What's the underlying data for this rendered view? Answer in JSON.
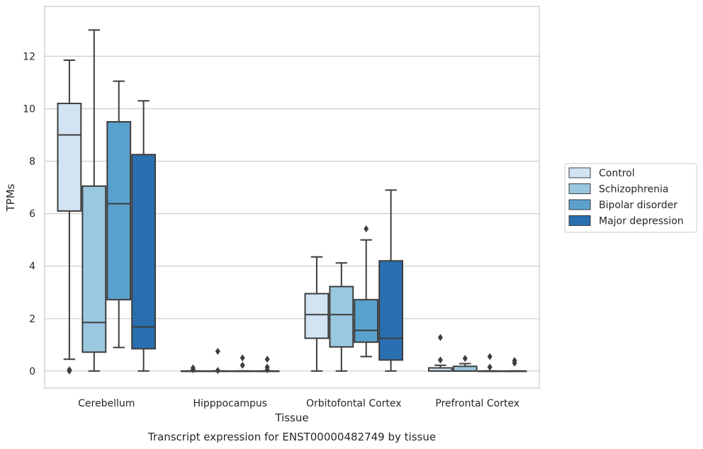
{
  "chart_data": {
    "type": "boxplot",
    "caption": "Transcript expression for ENST00000482749 by tissue",
    "xlabel": "Tissue",
    "ylabel": "TPMs",
    "ylim": [
      -0.65,
      13.9
    ],
    "yticks": [
      0,
      2,
      4,
      6,
      8,
      10,
      12
    ],
    "grid": "horizontal",
    "legend_position": "right",
    "categories": [
      "Cerebellum",
      "Hipppocampus",
      "Orbitofontal Cortex",
      "Prefrontal Cortex"
    ],
    "series": [
      {
        "name": "Control",
        "color": "#d2e3f3",
        "boxes": [
          {
            "whislo": 0.45,
            "q1": 6.1,
            "med": 9.0,
            "q3": 10.2,
            "whishi": 11.85,
            "fliers": [
              0.0,
              0.05
            ]
          },
          {
            "whislo": 0.0,
            "q1": 0.0,
            "med": 0.0,
            "q3": 0.0,
            "whishi": 0.0,
            "fliers": [
              0.05,
              0.12
            ]
          },
          {
            "whislo": 0.0,
            "q1": 1.25,
            "med": 2.15,
            "q3": 2.95,
            "whishi": 4.35,
            "fliers": []
          },
          {
            "whislo": 0.0,
            "q1": 0.0,
            "med": 0.0,
            "q3": 0.12,
            "whishi": 0.22,
            "fliers": [
              0.42,
              1.28
            ]
          }
        ]
      },
      {
        "name": "Schizophrenia",
        "color": "#9ac8e0",
        "boxes": [
          {
            "whislo": 0.0,
            "q1": 0.72,
            "med": 1.85,
            "q3": 7.05,
            "whishi": 13.0,
            "fliers": []
          },
          {
            "whislo": 0.0,
            "q1": 0.0,
            "med": 0.0,
            "q3": 0.0,
            "whishi": 0.0,
            "fliers": [
              0.02,
              0.75
            ]
          },
          {
            "whislo": 0.0,
            "q1": 0.92,
            "med": 2.15,
            "q3": 3.22,
            "whishi": 4.12,
            "fliers": []
          },
          {
            "whislo": 0.0,
            "q1": 0.0,
            "med": 0.0,
            "q3": 0.18,
            "whishi": 0.28,
            "fliers": [
              0.48
            ]
          }
        ]
      },
      {
        "name": "Bipolar disorder",
        "color": "#5aa0cd",
        "boxes": [
          {
            "whislo": 0.9,
            "q1": 2.72,
            "med": 6.38,
            "q3": 9.5,
            "whishi": 11.05,
            "fliers": []
          },
          {
            "whislo": 0.0,
            "q1": 0.0,
            "med": 0.0,
            "q3": 0.0,
            "whishi": 0.0,
            "fliers": [
              0.22,
              0.5
            ]
          },
          {
            "whislo": 0.55,
            "q1": 1.1,
            "med": 1.55,
            "q3": 2.72,
            "whishi": 5.0,
            "fliers": [
              5.42
            ]
          },
          {
            "whislo": 0.0,
            "q1": 0.0,
            "med": 0.0,
            "q3": 0.0,
            "whishi": 0.0,
            "fliers": [
              0.15,
              0.55
            ]
          }
        ]
      },
      {
        "name": "Major depression",
        "color": "#2a6fb0",
        "boxes": [
          {
            "whislo": 0.0,
            "q1": 0.85,
            "med": 1.68,
            "q3": 8.25,
            "whishi": 10.3,
            "fliers": []
          },
          {
            "whislo": 0.0,
            "q1": 0.0,
            "med": 0.0,
            "q3": 0.0,
            "whishi": 0.0,
            "fliers": [
              0.05,
              0.15,
              0.45
            ]
          },
          {
            "whislo": 0.0,
            "q1": 0.42,
            "med": 1.25,
            "q3": 4.2,
            "whishi": 6.9,
            "fliers": []
          },
          {
            "whislo": 0.0,
            "q1": 0.0,
            "med": 0.0,
            "q3": 0.0,
            "whishi": 0.0,
            "fliers": [
              0.3,
              0.4
            ]
          }
        ]
      }
    ]
  }
}
